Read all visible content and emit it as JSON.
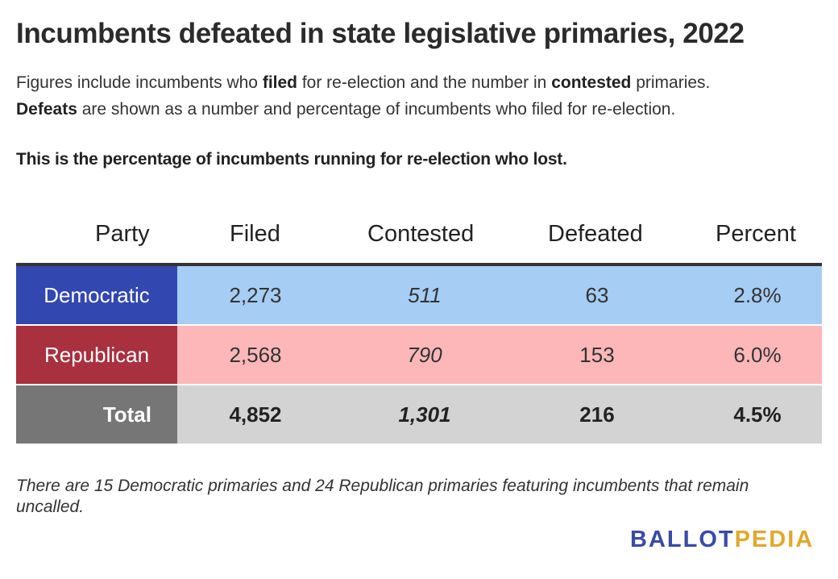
{
  "title": "Incumbents defeated in state legislative primaries, 2022",
  "description": {
    "line1": {
      "t1": "Figures include incumbents who ",
      "b1": "filed",
      "t2": " for re-election and the number in ",
      "b2": "contested",
      "t3": " primaries."
    },
    "line2": {
      "b1": "Defeats",
      "t1": " are shown as a number and percentage of incumbents who filed for re-election."
    }
  },
  "subtitle": "This is the percentage of incumbents running for re-election who lost.",
  "chart_data": {
    "type": "table",
    "columns": [
      "Party",
      "Filed",
      "Contested",
      "Defeated",
      "Percent"
    ],
    "rows": [
      {
        "party": "Democratic",
        "filed": "2,273",
        "contested": "511",
        "defeated": "63",
        "percent": "2.8%",
        "party_color": "#3247b0",
        "row_color": "#a6cdf3"
      },
      {
        "party": "Republican",
        "filed": "2,568",
        "contested": "790",
        "defeated": "153",
        "percent": "6.0%",
        "party_color": "#a8303f",
        "row_color": "#feb7b9"
      },
      {
        "party": "Total",
        "filed": "4,852",
        "contested": "1,301",
        "defeated": "216",
        "percent": "4.5%",
        "party_color": "#767676",
        "row_color": "#d3d3d3"
      }
    ]
  },
  "footnote": "There are 15 Democratic primaries and 24 Republican primaries featuring incumbents that remain uncalled.",
  "brand": {
    "part1": "BALLOT",
    "part2": "PEDIA",
    "color1": "#3a4aa6",
    "color2": "#e0a82e"
  }
}
